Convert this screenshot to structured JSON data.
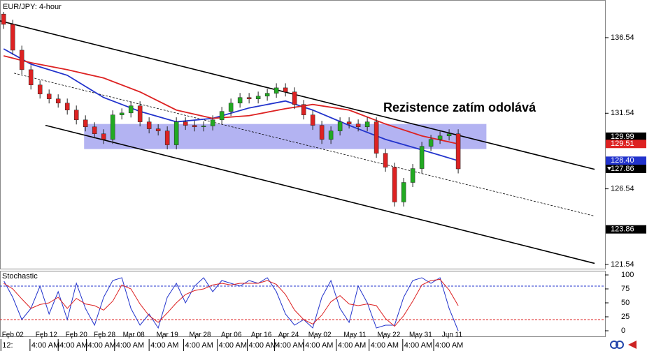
{
  "chart_data": {
    "type": "candlestick",
    "title": "EUR/JPY: 4-hour",
    "annotation": "Rezistence zatím odolává",
    "xlim": [
      -0.4,
      66.15
    ],
    "ylim": [
      121.26,
      139.03
    ],
    "yticks": [
      136.54,
      131.54,
      126.54,
      121.54
    ],
    "xticks": [
      {
        "value": 0.5,
        "label": "Feb 02"
      },
      {
        "value": 4.2,
        "label": "Feb 12"
      },
      {
        "value": 7.5,
        "label": "Feb 20"
      },
      {
        "value": 10.6,
        "label": "Feb 28"
      },
      {
        "value": 13.8,
        "label": "Mar 08"
      },
      {
        "value": 17.5,
        "label": "Mar 19"
      },
      {
        "value": 21.1,
        "label": "Mar 28"
      },
      {
        "value": 24.6,
        "label": "Apr 06"
      },
      {
        "value": 27.9,
        "label": "Apr 16"
      },
      {
        "value": 30.9,
        "label": "Apr 24"
      },
      {
        "value": 34.2,
        "label": "May 02"
      },
      {
        "value": 38.1,
        "label": "May 11"
      },
      {
        "value": 41.8,
        "label": "May 22"
      },
      {
        "value": 45.3,
        "label": "May 31"
      },
      {
        "value": 48.9,
        "label": "Jun 11"
      }
    ],
    "time_ticks": [
      {
        "value": -0.3,
        "label": "12:"
      },
      {
        "value": 2.9,
        "label": "4:00 AM"
      },
      {
        "value": 6.0,
        "label": "4:00 AM"
      },
      {
        "value": 9.1,
        "label": "4:00 AM"
      },
      {
        "value": 12.2,
        "label": "4:00 AM"
      },
      {
        "value": 16.0,
        "label": "4:00 AM"
      },
      {
        "value": 19.8,
        "label": "4:00 AM"
      },
      {
        "value": 23.5,
        "label": "4:00 AM"
      },
      {
        "value": 26.8,
        "label": "4:00 AM"
      },
      {
        "value": 29.8,
        "label": "4:00 AM"
      },
      {
        "value": 33.0,
        "label": "4:00 AM"
      },
      {
        "value": 36.6,
        "label": "4:00 AM"
      },
      {
        "value": 40.2,
        "label": "4:00 AM"
      },
      {
        "value": 43.9,
        "label": "4:00 AM"
      },
      {
        "value": 47.3,
        "label": "4:00 AM"
      }
    ],
    "up_color": "#22aa22",
    "down_color": "#dd2222",
    "x": [
      0,
      1,
      2,
      3,
      4,
      5,
      6,
      7,
      8,
      9,
      10,
      11,
      12,
      13,
      14,
      15,
      16,
      17,
      18,
      19,
      20,
      21,
      22,
      23,
      24,
      25,
      26,
      27,
      28,
      29,
      30,
      31,
      32,
      33,
      34,
      35,
      36,
      37,
      38,
      39,
      40,
      41,
      42,
      43,
      44,
      45,
      46,
      47,
      48,
      49,
      50
    ],
    "open": [
      138.1,
      137.42,
      135.71,
      134.42,
      133.41,
      132.81,
      132.49,
      132.21,
      131.75,
      131.1,
      130.64,
      130.18,
      129.81,
      131.43,
      131.56,
      132.03,
      130.97,
      130.51,
      130.37,
      129.45,
      130.97,
      130.74,
      130.64,
      130.7,
      131.1,
      131.66,
      132.21,
      132.58,
      132.49,
      132.67,
      132.86,
      133.22,
      132.95,
      132.12,
      131.43,
      130.74,
      129.81,
      130.37,
      130.97,
      130.83,
      130.64,
      130.97,
      128.89,
      127.97,
      125.67,
      126.96,
      127.88,
      129.35,
      129.81,
      130.04,
      130.18
    ],
    "high": [
      138.4,
      137.72,
      136.01,
      134.72,
      133.71,
      133.11,
      132.79,
      132.51,
      132.05,
      131.4,
      130.94,
      130.48,
      131.73,
      131.86,
      132.33,
      132.33,
      131.27,
      130.81,
      130.67,
      131.27,
      131.27,
      131.04,
      131.0,
      131.4,
      131.96,
      132.51,
      132.88,
      132.88,
      132.97,
      133.16,
      133.52,
      133.52,
      133.25,
      132.42,
      131.73,
      131.04,
      130.67,
      131.27,
      131.27,
      131.13,
      131.27,
      131.27,
      129.19,
      128.27,
      127.26,
      128.18,
      129.65,
      130.11,
      130.34,
      130.48,
      130.48
    ],
    "low": [
      137.12,
      135.41,
      134.12,
      133.11,
      132.51,
      132.19,
      131.91,
      131.45,
      130.8,
      130.34,
      129.88,
      129.51,
      129.51,
      131.13,
      131.26,
      130.67,
      130.21,
      130.07,
      129.15,
      129.15,
      130.44,
      130.34,
      130.34,
      130.4,
      130.8,
      131.36,
      131.91,
      132.19,
      132.19,
      132.37,
      132.56,
      132.65,
      131.82,
      131.13,
      130.44,
      129.51,
      129.51,
      130.07,
      130.53,
      130.34,
      130.34,
      128.59,
      127.67,
      125.37,
      125.37,
      126.66,
      127.58,
      129.05,
      129.51,
      129.74,
      127.56
    ],
    "close": [
      137.42,
      135.71,
      134.42,
      133.41,
      132.81,
      132.49,
      132.21,
      131.75,
      131.1,
      130.64,
      130.18,
      129.81,
      131.43,
      131.56,
      132.03,
      130.97,
      130.51,
      130.37,
      129.45,
      130.97,
      130.74,
      130.64,
      130.7,
      131.1,
      131.66,
      132.21,
      132.58,
      132.49,
      132.67,
      132.86,
      133.22,
      132.95,
      132.12,
      131.43,
      130.74,
      129.81,
      130.37,
      130.97,
      130.83,
      130.64,
      130.97,
      128.89,
      127.97,
      125.67,
      126.96,
      127.88,
      129.35,
      129.81,
      130.04,
      130.18,
      127.86
    ],
    "series": [
      {
        "color": "#2233cc",
        "x": [
          0,
          3,
          7,
          11,
          15,
          19,
          23,
          27,
          31,
          34,
          38,
          42,
          46,
          50
        ],
        "values": [
          135.8,
          134.79,
          134.05,
          132.58,
          131.66,
          130.97,
          131.2,
          131.89,
          132.35,
          131.75,
          130.74,
          129.81,
          129.12,
          128.4
        ]
      },
      {
        "color": "#dd2222",
        "x": [
          0,
          3,
          7,
          11,
          15,
          19,
          23,
          27,
          31,
          34,
          38,
          42,
          46,
          50
        ],
        "values": [
          135.34,
          134.88,
          134.42,
          133.87,
          132.95,
          131.75,
          131.2,
          131.38,
          131.84,
          132.12,
          131.75,
          130.83,
          130.04,
          129.51
        ]
      }
    ],
    "trendlines": [
      {
        "x": [
          -0.4,
          65
        ],
        "values": [
          137.65,
          127.83
        ],
        "dashed": false
      },
      {
        "x": [
          4.6,
          65
        ],
        "values": [
          130.74,
          121.61
        ],
        "dashed": false
      },
      {
        "x": [
          1.15,
          65
        ],
        "values": [
          134.19,
          124.74
        ],
        "dashed": true
      }
    ],
    "zone": {
      "x": [
        8.85,
        53.1
      ],
      "values": [
        130.83,
        129.17
      ],
      "color": "#9999ee"
    },
    "price_markers": [
      {
        "value": 129.99,
        "label": "129.99",
        "color": "#000000"
      },
      {
        "value": 129.51,
        "label": "129.51",
        "color": "#dd2222"
      },
      {
        "value": 128.4,
        "label": "128.40",
        "color": "#2233cc"
      },
      {
        "value": 127.86,
        "label": "127.86",
        "color": "#000000"
      },
      {
        "value": 123.86,
        "label": "123.86",
        "color": "#000000"
      }
    ],
    "stochastic": {
      "title": "Stochastic",
      "ylim": [
        -10,
        107.5
      ],
      "yticks": [
        100,
        75,
        50,
        25,
        0
      ],
      "upper": 80,
      "lower": 20,
      "upper_color": "#2233cc",
      "lower_color": "#dd2222",
      "series": [
        {
          "color": "#2233cc",
          "values": [
            90,
            60,
            20,
            40,
            80,
            30,
            70,
            20,
            85,
            40,
            10,
            60,
            90,
            95,
            40,
            10,
            30,
            5,
            60,
            85,
            50,
            80,
            95,
            70,
            90,
            85,
            80,
            90,
            85,
            95,
            70,
            30,
            10,
            20,
            5,
            60,
            90,
            40,
            15,
            80,
            50,
            5,
            10,
            10,
            60,
            90,
            95,
            85,
            95,
            40,
            0
          ]
        },
        {
          "color": "#dd2222",
          "values": [
            85,
            75,
            57,
            40,
            47,
            50,
            60,
            40,
            58,
            48,
            45,
            37,
            53,
            82,
            75,
            48,
            27,
            15,
            32,
            50,
            65,
            72,
            75,
            82,
            85,
            82,
            85,
            85,
            85,
            90,
            83,
            65,
            37,
            20,
            12,
            28,
            52,
            63,
            48,
            45,
            48,
            45,
            22,
            8,
            27,
            53,
            82,
            90,
            92,
            73,
            45
          ]
        }
      ]
    }
  }
}
